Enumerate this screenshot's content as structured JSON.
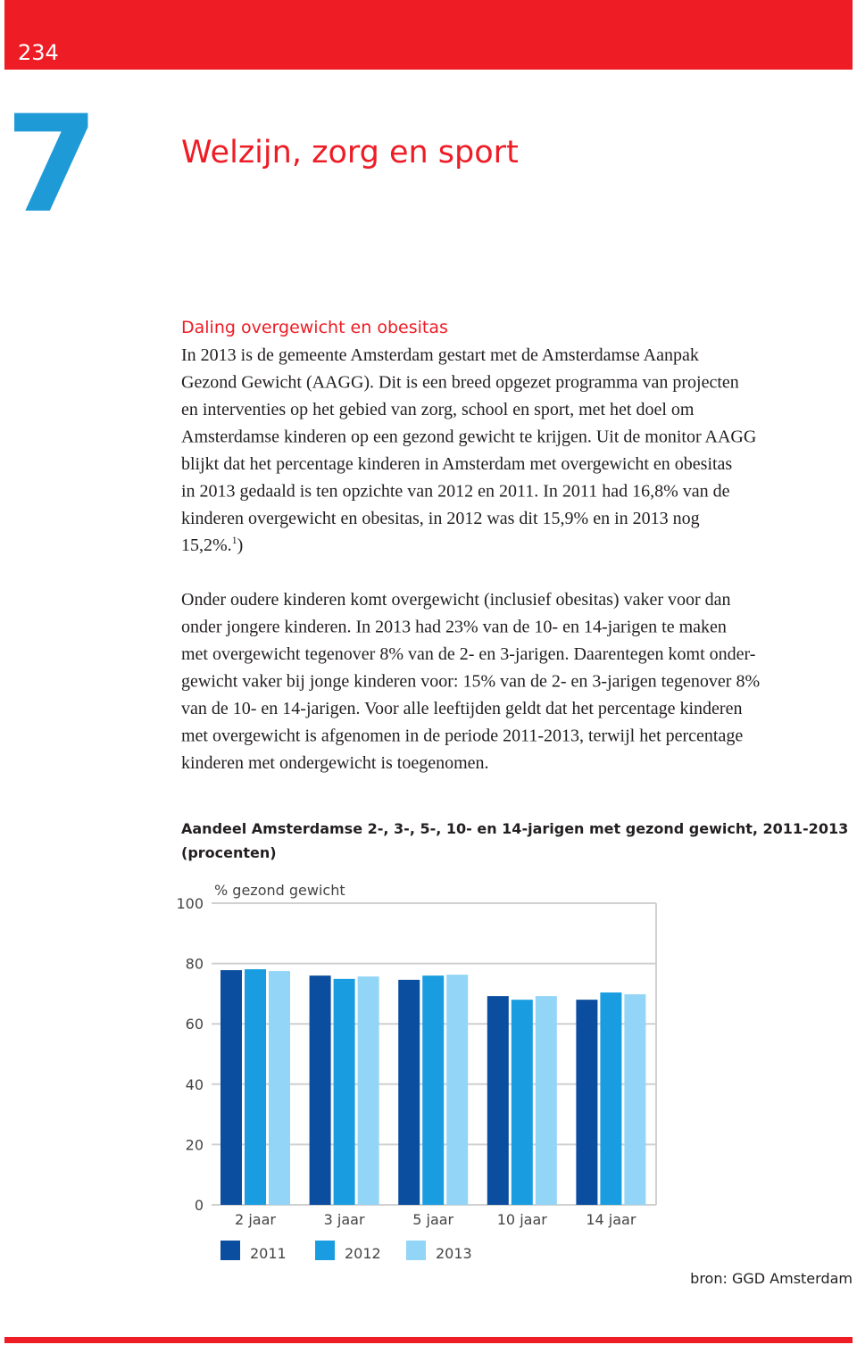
{
  "header": {
    "page_number": "234",
    "chapter_number": "7",
    "chapter_title": "Welzijn, zorg en sport"
  },
  "section": {
    "heading": "Daling overgewicht en obesitas",
    "paragraphs": [
      {
        "lines": [
          "In 2013 is de gemeente Amsterdam gestart met de Amsterdamse Aanpak",
          "Gezond Gewicht (AAGG). Dit is een breed opgezet programma van projecten",
          "en interventies op het gebied van zorg, school en sport, met het doel om",
          "Amsterdamse kinderen op een gezond gewicht te krijgen. Uit de monitor AAGG",
          "blijkt dat het percentage kinderen in Amsterdam met overgewicht en obesitas",
          "in 2013 gedaald is ten opzichte van 2012 en 2011. In 2011 had 16,8% van de",
          "kinderen overgewicht en obesitas, in 2012 was dit 15,9% en in 2013 nog"
        ],
        "last_line": {
          "text": "15,2%.",
          "footnote": "1",
          "after": ")"
        }
      },
      {
        "lines": [
          "Onder oudere kinderen komt overgewicht (inclusief obesitas) vaker voor dan",
          "onder jongere kinderen. In 2013 had 23% van de 10- en 14-jarigen te maken",
          "met overgewicht tegenover 8% van de 2- en 3-jarigen. Daarentegen komt onder-",
          "gewicht vaker bij jonge kinderen voor: 15% van de 2- en 3-jarigen tegenover 8%",
          "van de 10- en 14-jarigen. Voor alle leeftijden geldt dat het percentage kinderen",
          "met overgewicht is afgenomen in de periode 2011-2013, terwijl het percentage",
          "kinderen met ondergewicht is toegenomen."
        ]
      }
    ]
  },
  "chart_data": {
    "type": "bar",
    "title": [
      "Aandeel Amsterdamse 2-, 3-, 5-, 10- en 14-jarigen met gezond gewicht, 2011-2013",
      "(procenten)"
    ],
    "y_label": "% gezond gewicht",
    "categories": [
      "2 jaar",
      "3 jaar",
      "5 jaar",
      "10 jaar",
      "14 jaar"
    ],
    "series": [
      {
        "name": "2011",
        "color": "#0b4d9f",
        "values": [
          77.8,
          76.0,
          74.6,
          69.2,
          68.0
        ]
      },
      {
        "name": "2012",
        "color": "#1a9de0",
        "values": [
          78.1,
          74.9,
          76.0,
          68.0,
          70.4
        ]
      },
      {
        "name": "2013",
        "color": "#93d5f6",
        "values": [
          77.5,
          75.7,
          76.3,
          69.2,
          69.8
        ]
      }
    ],
    "ylim": [
      0,
      100
    ],
    "yticks": [
      0,
      20,
      40,
      60,
      80,
      100
    ],
    "grid": true,
    "source": "bron: GGD Amsterdam"
  }
}
